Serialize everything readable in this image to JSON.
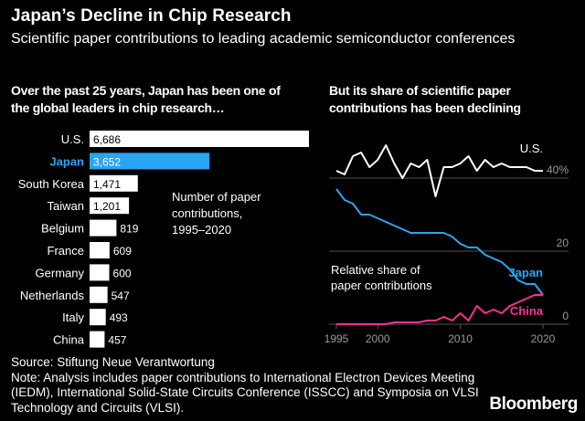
{
  "header": {
    "title": "Japan’s Decline in Chip Research",
    "subtitle": "Scientific paper contributions to leading academic semiconductor conferences"
  },
  "footer": {
    "source": "Source: Stiftung Neue Verantwortung",
    "note": "Note: Analysis includes paper contributions to International Electron Devices Meeting (IEDM), International Solid-State Circuits Conference (ISSCC) and Symposia on VLSI Technology and Circuits (VLSI).",
    "brand": "Bloomberg"
  },
  "colors": {
    "highlight_bar": "#2aa5f5",
    "japan": "#2aa5f5",
    "china": "#ff2f92",
    "us": "#ffffff",
    "grid": "#555555",
    "axis_text": "#9a9a9a"
  },
  "chart_data": [
    {
      "type": "bar",
      "orientation": "horizontal",
      "title": "Over the past 25 years, Japan has been one of the global leaders in chip research…",
      "annotation": "Number of paper contributions, 1995–2020",
      "categories": [
        "U.S.",
        "Japan",
        "South Korea",
        "Taiwan",
        "Belgium",
        "France",
        "Germany",
        "Netherlands",
        "Italy",
        "China"
      ],
      "values": [
        6686,
        3652,
        1471,
        1201,
        819,
        609,
        600,
        547,
        493,
        457
      ],
      "value_labels": [
        "6,686",
        "3,652",
        "1,471",
        "1,201",
        "819",
        "609",
        "600",
        "547",
        "493",
        "457"
      ],
      "highlight": "Japan",
      "xlim": [
        0,
        6686
      ]
    },
    {
      "type": "line",
      "title": "But its share of scientific paper contributions has been declining",
      "annotation": "Relative share of paper contributions",
      "x": [
        1995,
        1996,
        1997,
        1998,
        1999,
        2000,
        2001,
        2002,
        2003,
        2004,
        2005,
        2006,
        2007,
        2008,
        2009,
        2010,
        2011,
        2012,
        2013,
        2014,
        2015,
        2016,
        2017,
        2018,
        2019,
        2020
      ],
      "xticks": [
        1995,
        2000,
        2010,
        2020
      ],
      "xtick_labels": [
        "1995",
        "2000",
        "2010",
        "2020"
      ],
      "yticks": [
        0,
        20,
        40
      ],
      "ytick_labels": [
        "0",
        "20",
        "40%"
      ],
      "ylim": [
        0,
        50
      ],
      "series": [
        {
          "name": "U.S.",
          "values": [
            42,
            41,
            46,
            47,
            43,
            45,
            49,
            44,
            40,
            44,
            43,
            45,
            35,
            43,
            43,
            44,
            46,
            42,
            45,
            43,
            44,
            43,
            43,
            43,
            42,
            42
          ]
        },
        {
          "name": "Japan",
          "values": [
            37,
            34,
            33,
            30,
            30,
            29,
            28,
            27,
            26,
            25,
            25,
            25,
            25,
            25,
            24,
            22,
            21,
            21,
            19,
            18,
            17,
            15,
            12,
            11,
            11,
            8
          ]
        },
        {
          "name": "China",
          "values": [
            0,
            0,
            0,
            0,
            0,
            0,
            0,
            0.5,
            0.5,
            0.5,
            0.5,
            1,
            1,
            2,
            1,
            3,
            1,
            5,
            3,
            4,
            3,
            5,
            6,
            7,
            8,
            8
          ]
        }
      ]
    }
  ]
}
